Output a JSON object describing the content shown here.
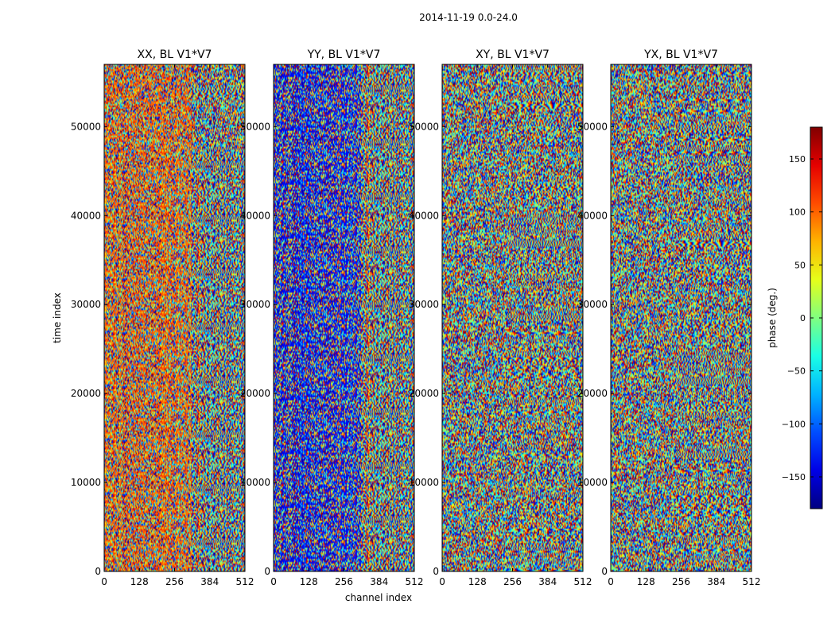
{
  "chart_data": {
    "type": "heatmap",
    "suptitle": "2014-11-19 0.0-24.0",
    "xlabel": "channel index",
    "ylabel": "time index",
    "xlim": [
      0,
      512
    ],
    "ylim": [
      0,
      57000
    ],
    "xticks": [
      0,
      128,
      256,
      384,
      512
    ],
    "yticks": [
      0,
      10000,
      20000,
      30000,
      40000,
      50000
    ],
    "panels": [
      {
        "title": "XX, BL V1*V7",
        "pol": "XX"
      },
      {
        "title": "YY, BL V1*V7",
        "pol": "YY"
      },
      {
        "title": "XY, BL V1*V7",
        "pol": "XY"
      },
      {
        "title": "YX, BL V1*V7",
        "pol": "YX"
      }
    ],
    "colorbar": {
      "label": "phase (deg.)",
      "colormap": "jet",
      "range": [
        -180,
        180
      ],
      "ticks": [
        -150,
        -100,
        -50,
        0,
        50,
        100,
        150
      ],
      "tick_labels": [
        "−150",
        "−100",
        "−50",
        "0",
        "50",
        "100",
        "150"
      ]
    }
  }
}
